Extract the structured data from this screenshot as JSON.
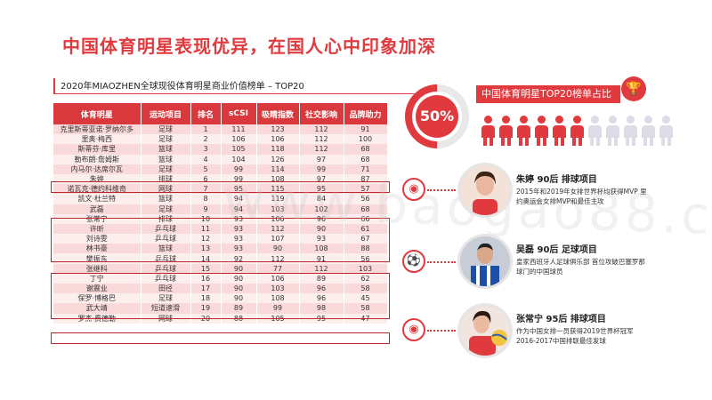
{
  "header": {
    "title": "中国体育明星表现优异，在国人心中印象加深"
  },
  "table": {
    "title": "2020年MIAOZHEN全球现役体育明星商业价值榜单 – TOP20",
    "columns": [
      "体育明星",
      "运动项目",
      "排名",
      "sCSI",
      "吸睛指数",
      "社交影响",
      "品牌助力"
    ],
    "rows": [
      [
        "克里斯蒂亚诺·罗纳尔多",
        "足球",
        "1",
        "111",
        "123",
        "112",
        "91"
      ],
      [
        "里奥·梅西",
        "足球",
        "2",
        "106",
        "106",
        "112",
        "100"
      ],
      [
        "斯蒂芬·库里",
        "篮球",
        "3",
        "105",
        "118",
        "112",
        "68"
      ],
      [
        "勒布朗·詹姆斯",
        "篮球",
        "4",
        "104",
        "126",
        "97",
        "68"
      ],
      [
        "内马尔·达席尔瓦",
        "足球",
        "5",
        "99",
        "114",
        "99",
        "71"
      ],
      [
        "朱婷",
        "排球",
        "6",
        "99",
        "108",
        "97",
        "87"
      ],
      [
        "诺瓦克·德约科维奇",
        "网球",
        "7",
        "95",
        "115",
        "95",
        "57"
      ],
      [
        "凯文·杜兰特",
        "篮球",
        "8",
        "94",
        "119",
        "84",
        "56"
      ],
      [
        "武磊",
        "足球",
        "9",
        "94",
        "103",
        "102",
        "68"
      ],
      [
        "张常宁",
        "排球",
        "10",
        "93",
        "106",
        "96",
        "66"
      ],
      [
        "许昕",
        "乒乓球",
        "11",
        "93",
        "112",
        "90",
        "61"
      ],
      [
        "刘诗雯",
        "乒乓球",
        "12",
        "93",
        "107",
        "93",
        "67"
      ],
      [
        "林书豪",
        "篮球",
        "13",
        "93",
        "90",
        "108",
        "88"
      ],
      [
        "樊振东",
        "乒乓球",
        "14",
        "92",
        "112",
        "91",
        "56"
      ],
      [
        "张继科",
        "乒乓球",
        "15",
        "90",
        "77",
        "112",
        "103"
      ],
      [
        "丁宁",
        "乒乓球",
        "16",
        "90",
        "106",
        "89",
        "62"
      ],
      [
        "谢震业",
        "田径",
        "17",
        "90",
        "103",
        "96",
        "58"
      ],
      [
        "保罗·博格巴",
        "足球",
        "18",
        "90",
        "108",
        "96",
        "45"
      ],
      [
        "武大靖",
        "短道速滑",
        "19",
        "89",
        "99",
        "98",
        "58"
      ],
      [
        "罗杰·费德勒",
        "网球",
        "20",
        "88",
        "105",
        "95",
        "47"
      ]
    ]
  },
  "stats": {
    "percent": "50%",
    "ribbon_label": "中国体育明星TOP20榜单占比",
    "highlight_count": 10,
    "total_count": 20,
    "accent": "#e03a3e",
    "muted": "#dcdce6"
  },
  "cards": [
    {
      "name": "朱婷 90后 排球项目",
      "desc": "2015年和2019年女排世界杯均获得MVP 里约奥运会女排MVP和最佳主攻",
      "icon": "volleyball-icon"
    },
    {
      "name": "吴磊 90后 足球项目",
      "desc": "皇家西班牙人足球俱乐部 首位攻破巴塞罗那球门的中国球员",
      "icon": "soccer-player-icon"
    },
    {
      "name": "张常宁 95后 排球项目",
      "desc": "作为中国女排一员获得2019世界杯冠军 2016-2017中国排联最佳发球",
      "icon": "volleyball-icon"
    }
  ]
}
